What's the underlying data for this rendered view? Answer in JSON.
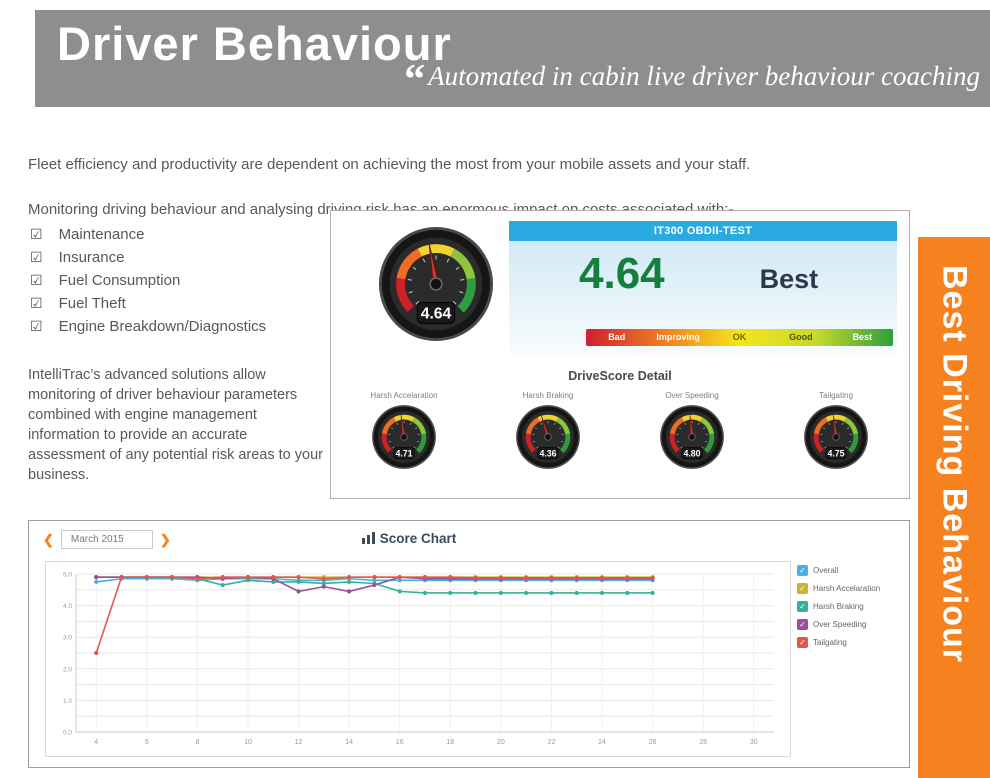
{
  "header": {
    "title": "Driver Behaviour",
    "quote_mark": "“",
    "subtitle": "Automated in cabin live driver behaviour coaching"
  },
  "intro": {
    "para1": "Fleet efficiency and productivity are dependent on achieving the most from your mobile assets and your staff.",
    "para2": "Monitoring driving behaviour and analysing driving risk has an enormous impact on costs associated with:-",
    "para3": "IntelliTrac’s advanced solutions  allow monitoring of driver behaviour parameters combined with engine management information to provide an accurate assessment of any potential risk areas to your business."
  },
  "checklist": {
    "check_glyph": "☑",
    "items": [
      "Maintenance",
      "Insurance",
      "Fuel Consumption",
      "Fuel Theft",
      "Engine Breakdown/Diagnostics"
    ]
  },
  "dashboard": {
    "vehicle": "IT300 OBDII-TEST",
    "main_gauge_value": 4.64,
    "score": "4.64",
    "rating": "Best",
    "arc_colors": [
      "#cc2127",
      "#ef6c23",
      "#f2d22e",
      "#8fc43e",
      "#2f9e41"
    ],
    "scale": [
      {
        "label": "Bad",
        "color": "#cf2030",
        "text": "#ffffff"
      },
      {
        "label": "Improving",
        "color": "#ef7d23",
        "text": "#ffffff"
      },
      {
        "label": "OK",
        "color": "#f5e51b",
        "text": "#6b6b00"
      },
      {
        "label": "Good",
        "color": "#c5d92d",
        "text": "#4a5a00"
      },
      {
        "label": "Best",
        "color": "#2e9e3e",
        "text": "#ffffff"
      }
    ],
    "detail_title": "DriveScore Detail",
    "gauges": [
      {
        "label": "Harsh Accelaration",
        "value": 4.71
      },
      {
        "label": "Harsh Braking",
        "value": 4.36
      },
      {
        "label": "Over Speeding",
        "value": 4.8
      },
      {
        "label": "Tailgating",
        "value": 4.75
      }
    ]
  },
  "score_chart": {
    "prev_icon": "❮",
    "next_icon": "❯",
    "month": "March 2015"
  },
  "chart_data": {
    "type": "line",
    "title": "Score Chart",
    "month": "March 2015",
    "xlim": [
      3.2,
      30.8
    ],
    "ylim": [
      0,
      5
    ],
    "grid": true,
    "legend_position": "right",
    "x_ticks": [
      4,
      6,
      8,
      10,
      12,
      14,
      16,
      18,
      20,
      22,
      24,
      26,
      28,
      30
    ],
    "y_ticks": [
      "5.0",
      "4.0",
      "3.0",
      "2.0",
      "1.0",
      "0.0"
    ],
    "x": [
      4,
      5,
      6,
      7,
      8,
      9,
      10,
      11,
      12,
      13,
      14,
      15,
      16,
      17,
      18,
      19,
      20,
      21,
      22,
      23,
      24,
      25,
      26
    ],
    "series": [
      {
        "name": "Overall",
        "color": "#45b2e0",
        "values": [
          4.75,
          4.85,
          4.85,
          4.85,
          4.8,
          4.85,
          4.85,
          4.85,
          4.8,
          4.8,
          4.85,
          4.8,
          4.8,
          4.8,
          4.8,
          4.8,
          4.8,
          4.8,
          4.8,
          4.8,
          4.8,
          4.8,
          4.8
        ]
      },
      {
        "name": "Harsh Accelaration",
        "color": "#c9b42d",
        "values": [
          4.9,
          4.9,
          4.9,
          4.9,
          4.9,
          4.9,
          4.9,
          4.9,
          4.9,
          4.9,
          4.9,
          4.9,
          4.9,
          4.9,
          4.9,
          4.9,
          4.9,
          4.9,
          4.9,
          4.9,
          4.9,
          4.9,
          4.9
        ]
      },
      {
        "name": "Harsh Braking",
        "color": "#30b39a",
        "values": [
          4.9,
          4.9,
          4.9,
          4.9,
          4.85,
          4.65,
          4.8,
          4.75,
          4.75,
          4.7,
          4.75,
          4.7,
          4.45,
          4.4,
          4.4,
          4.4,
          4.4,
          4.4,
          4.4,
          4.4,
          4.4,
          4.4,
          4.4
        ]
      },
      {
        "name": "Over Speeding",
        "color": "#9c4f9f",
        "values": [
          4.9,
          4.9,
          4.9,
          4.9,
          4.9,
          4.85,
          4.9,
          4.85,
          4.45,
          4.6,
          4.45,
          4.65,
          4.9,
          4.85,
          4.85,
          4.85,
          4.85,
          4.85,
          4.85,
          4.85,
          4.85,
          4.85,
          4.85
        ]
      },
      {
        "name": "Tailgating",
        "color": "#e0584d",
        "values": [
          2.5,
          4.9,
          4.9,
          4.9,
          4.85,
          4.9,
          4.9,
          4.9,
          4.9,
          4.85,
          4.9,
          4.9,
          4.9,
          4.9,
          4.9,
          4.88,
          4.88,
          4.88,
          4.88,
          4.88,
          4.88,
          4.88,
          4.88
        ]
      }
    ]
  },
  "sidebar": {
    "label": "Best Driving Behaviour",
    "color": "#f5821f"
  }
}
